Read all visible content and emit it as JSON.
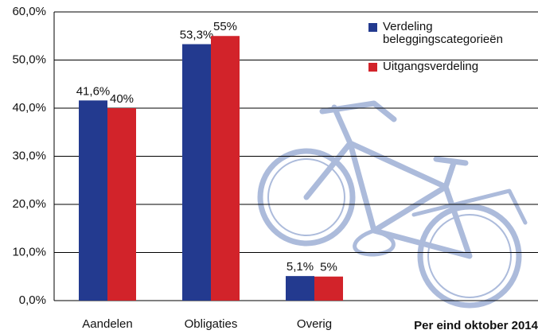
{
  "chart_data": {
    "type": "bar",
    "categories": [
      "Aandelen",
      "Obligaties",
      "Overig"
    ],
    "series": [
      {
        "name": "Verdeling beleggingscategorieën",
        "color": "#233a8f",
        "values": [
          41.6,
          53.3,
          5.1
        ],
        "value_labels": [
          "41,6%",
          "53,3%",
          "5,1%"
        ]
      },
      {
        "name": "Uitgangsverdeling",
        "color": "#d2232a",
        "values": [
          40,
          55,
          5
        ],
        "value_labels": [
          "40%",
          "55%",
          "5%"
        ]
      }
    ],
    "ylim": [
      0,
      60
    ],
    "yticks": [
      {
        "value": 0,
        "label": "0,0%"
      },
      {
        "value": 10,
        "label": "10,0%"
      },
      {
        "value": 20,
        "label": "20,0%"
      },
      {
        "value": 30,
        "label": "30,0%"
      },
      {
        "value": 40,
        "label": "40,0%"
      },
      {
        "value": 50,
        "label": "50,0%"
      },
      {
        "value": 60,
        "label": "60,0%"
      }
    ],
    "grid": true,
    "legend": "top-right",
    "annotation": "Per eind oktober 2014"
  }
}
